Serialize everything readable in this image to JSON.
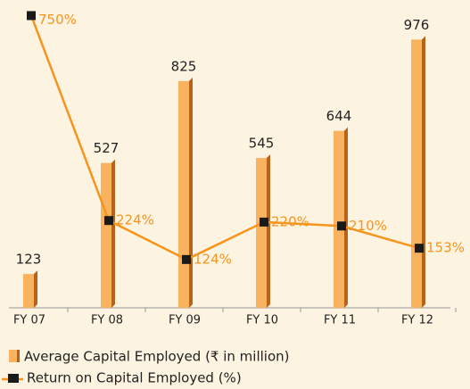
{
  "chart_data": {
    "type": "bar",
    "categories": [
      "FY 07",
      "FY 08",
      "FY 09",
      "FY 10",
      "FY 11",
      "FY 12"
    ],
    "series": [
      {
        "name": "Average  Capital Employed (₹ in million)",
        "color": "#f9b35e",
        "values": [
          123,
          527,
          825,
          545,
          644,
          976
        ]
      },
      {
        "name": "Return on Capital Employed (%)",
        "color": "#f7941d",
        "type": "line",
        "axis": "y2",
        "values": [
          750,
          224,
          124,
          220,
          210,
          153
        ],
        "value_labels": [
          "750%",
          "224%",
          "124%",
          "220%",
          "210%",
          "153%"
        ]
      }
    ],
    "ylim": [
      0,
      1120
    ],
    "y2lim": [
      0,
      790
    ],
    "grid": false
  }
}
